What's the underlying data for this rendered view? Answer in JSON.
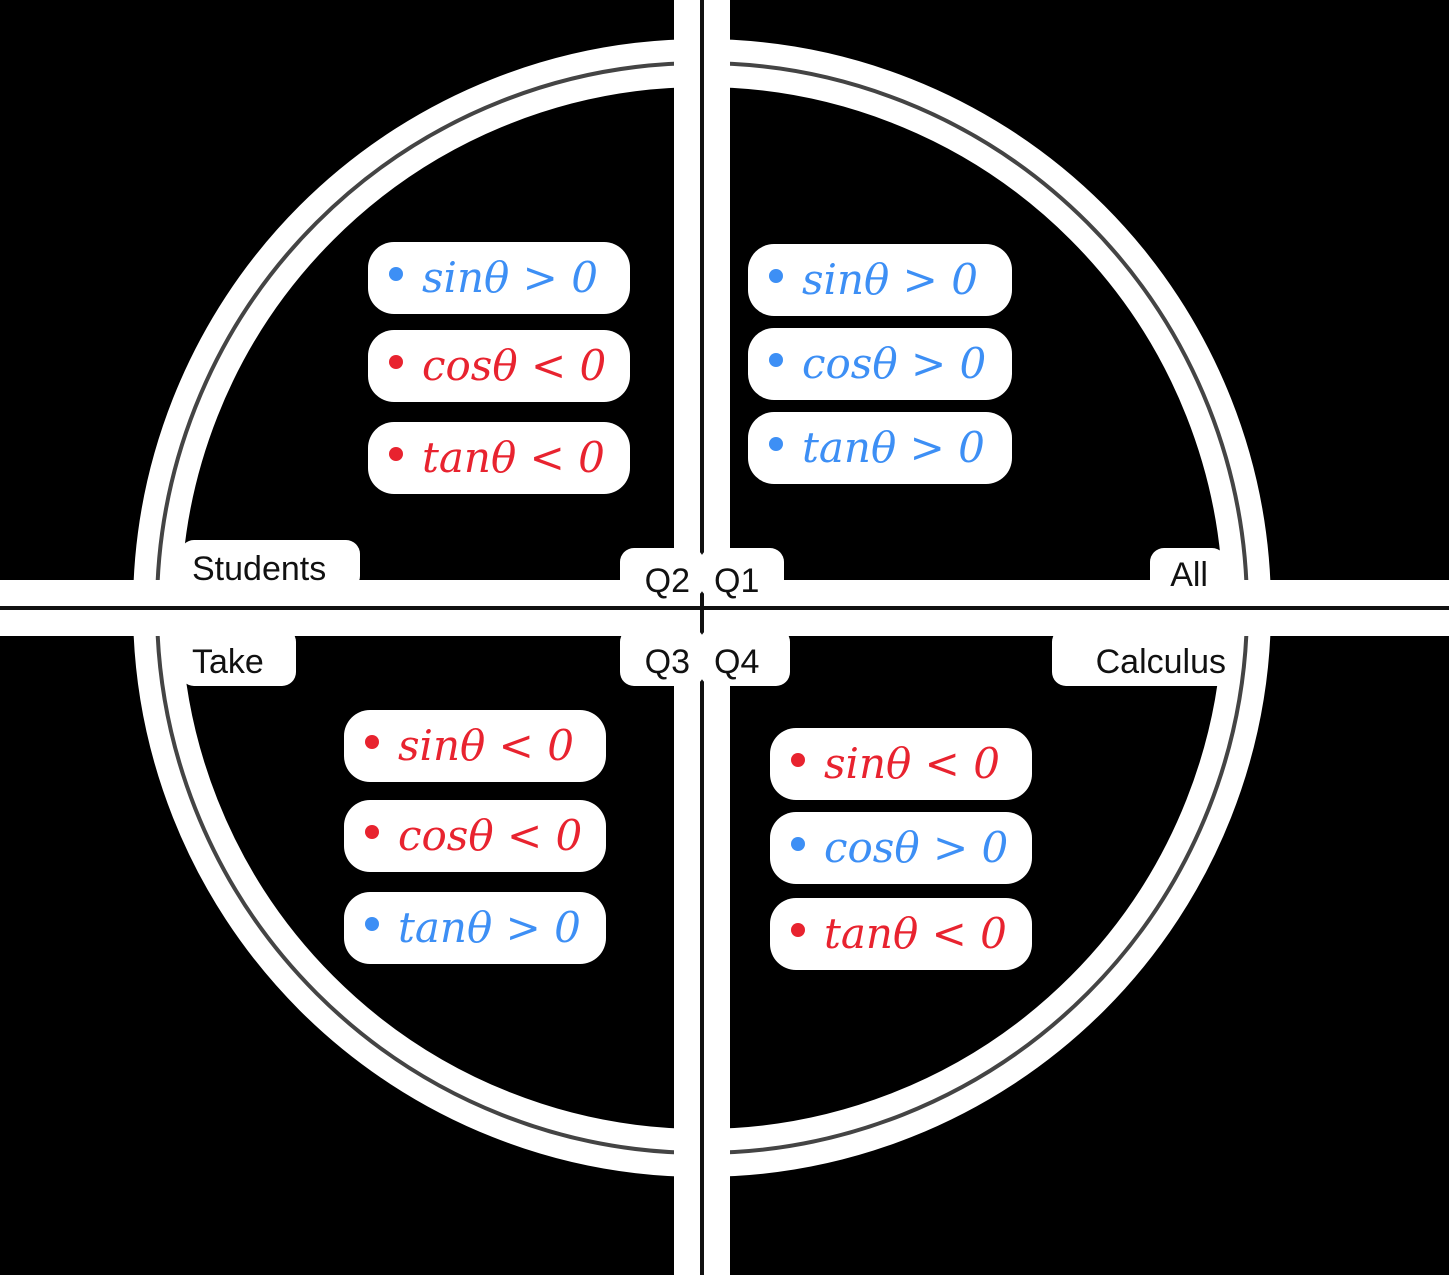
{
  "colors": {
    "positive": "#3d8ff5",
    "negative": "#e8232f",
    "circle": "#444444",
    "halo": "#ffffff",
    "background": "#000000",
    "label": "#111111"
  },
  "quadrant_labels": {
    "q1": "Q1",
    "q2": "Q2",
    "q3": "Q3",
    "q4": "Q4"
  },
  "mnemonic": {
    "q1": "All",
    "q2": "Students",
    "q3": "Take",
    "q4": "Calculus"
  },
  "quadrants": {
    "q1": [
      {
        "text": "sinθ > 0",
        "sign": "positive"
      },
      {
        "text": "cosθ > 0",
        "sign": "positive"
      },
      {
        "text": "tanθ > 0",
        "sign": "positive"
      }
    ],
    "q2": [
      {
        "text": "sinθ > 0",
        "sign": "positive"
      },
      {
        "text": "cosθ < 0",
        "sign": "negative"
      },
      {
        "text": "tanθ < 0",
        "sign": "negative"
      }
    ],
    "q3": [
      {
        "text": "sinθ < 0",
        "sign": "negative"
      },
      {
        "text": "cosθ < 0",
        "sign": "negative"
      },
      {
        "text": "tanθ > 0",
        "sign": "positive"
      }
    ],
    "q4": [
      {
        "text": "sinθ < 0",
        "sign": "negative"
      },
      {
        "text": "cosθ > 0",
        "sign": "positive"
      },
      {
        "text": "tanθ < 0",
        "sign": "negative"
      }
    ]
  }
}
